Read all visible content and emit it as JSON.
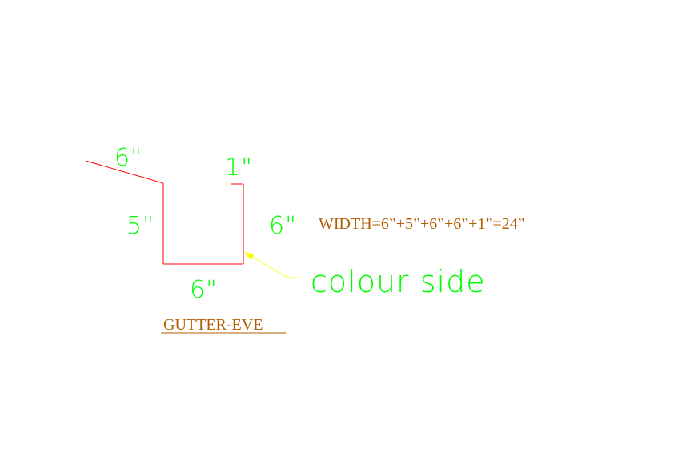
{
  "diagram": {
    "title": "GUTTER-EVE",
    "width_formula": "WIDTH=6”+5”+6”+6”+1”=24”",
    "callout": "colour side",
    "dimensions": {
      "top_slope": "6\"",
      "left_side": "5\"",
      "bottom": "6\"",
      "right_side": "6\"",
      "top_lip": "1\""
    },
    "colors": {
      "profile_line": "#ff0000",
      "dimension_text": "#00ff00",
      "annotation_text": "#b35c00",
      "leader": "#ffff00"
    }
  }
}
